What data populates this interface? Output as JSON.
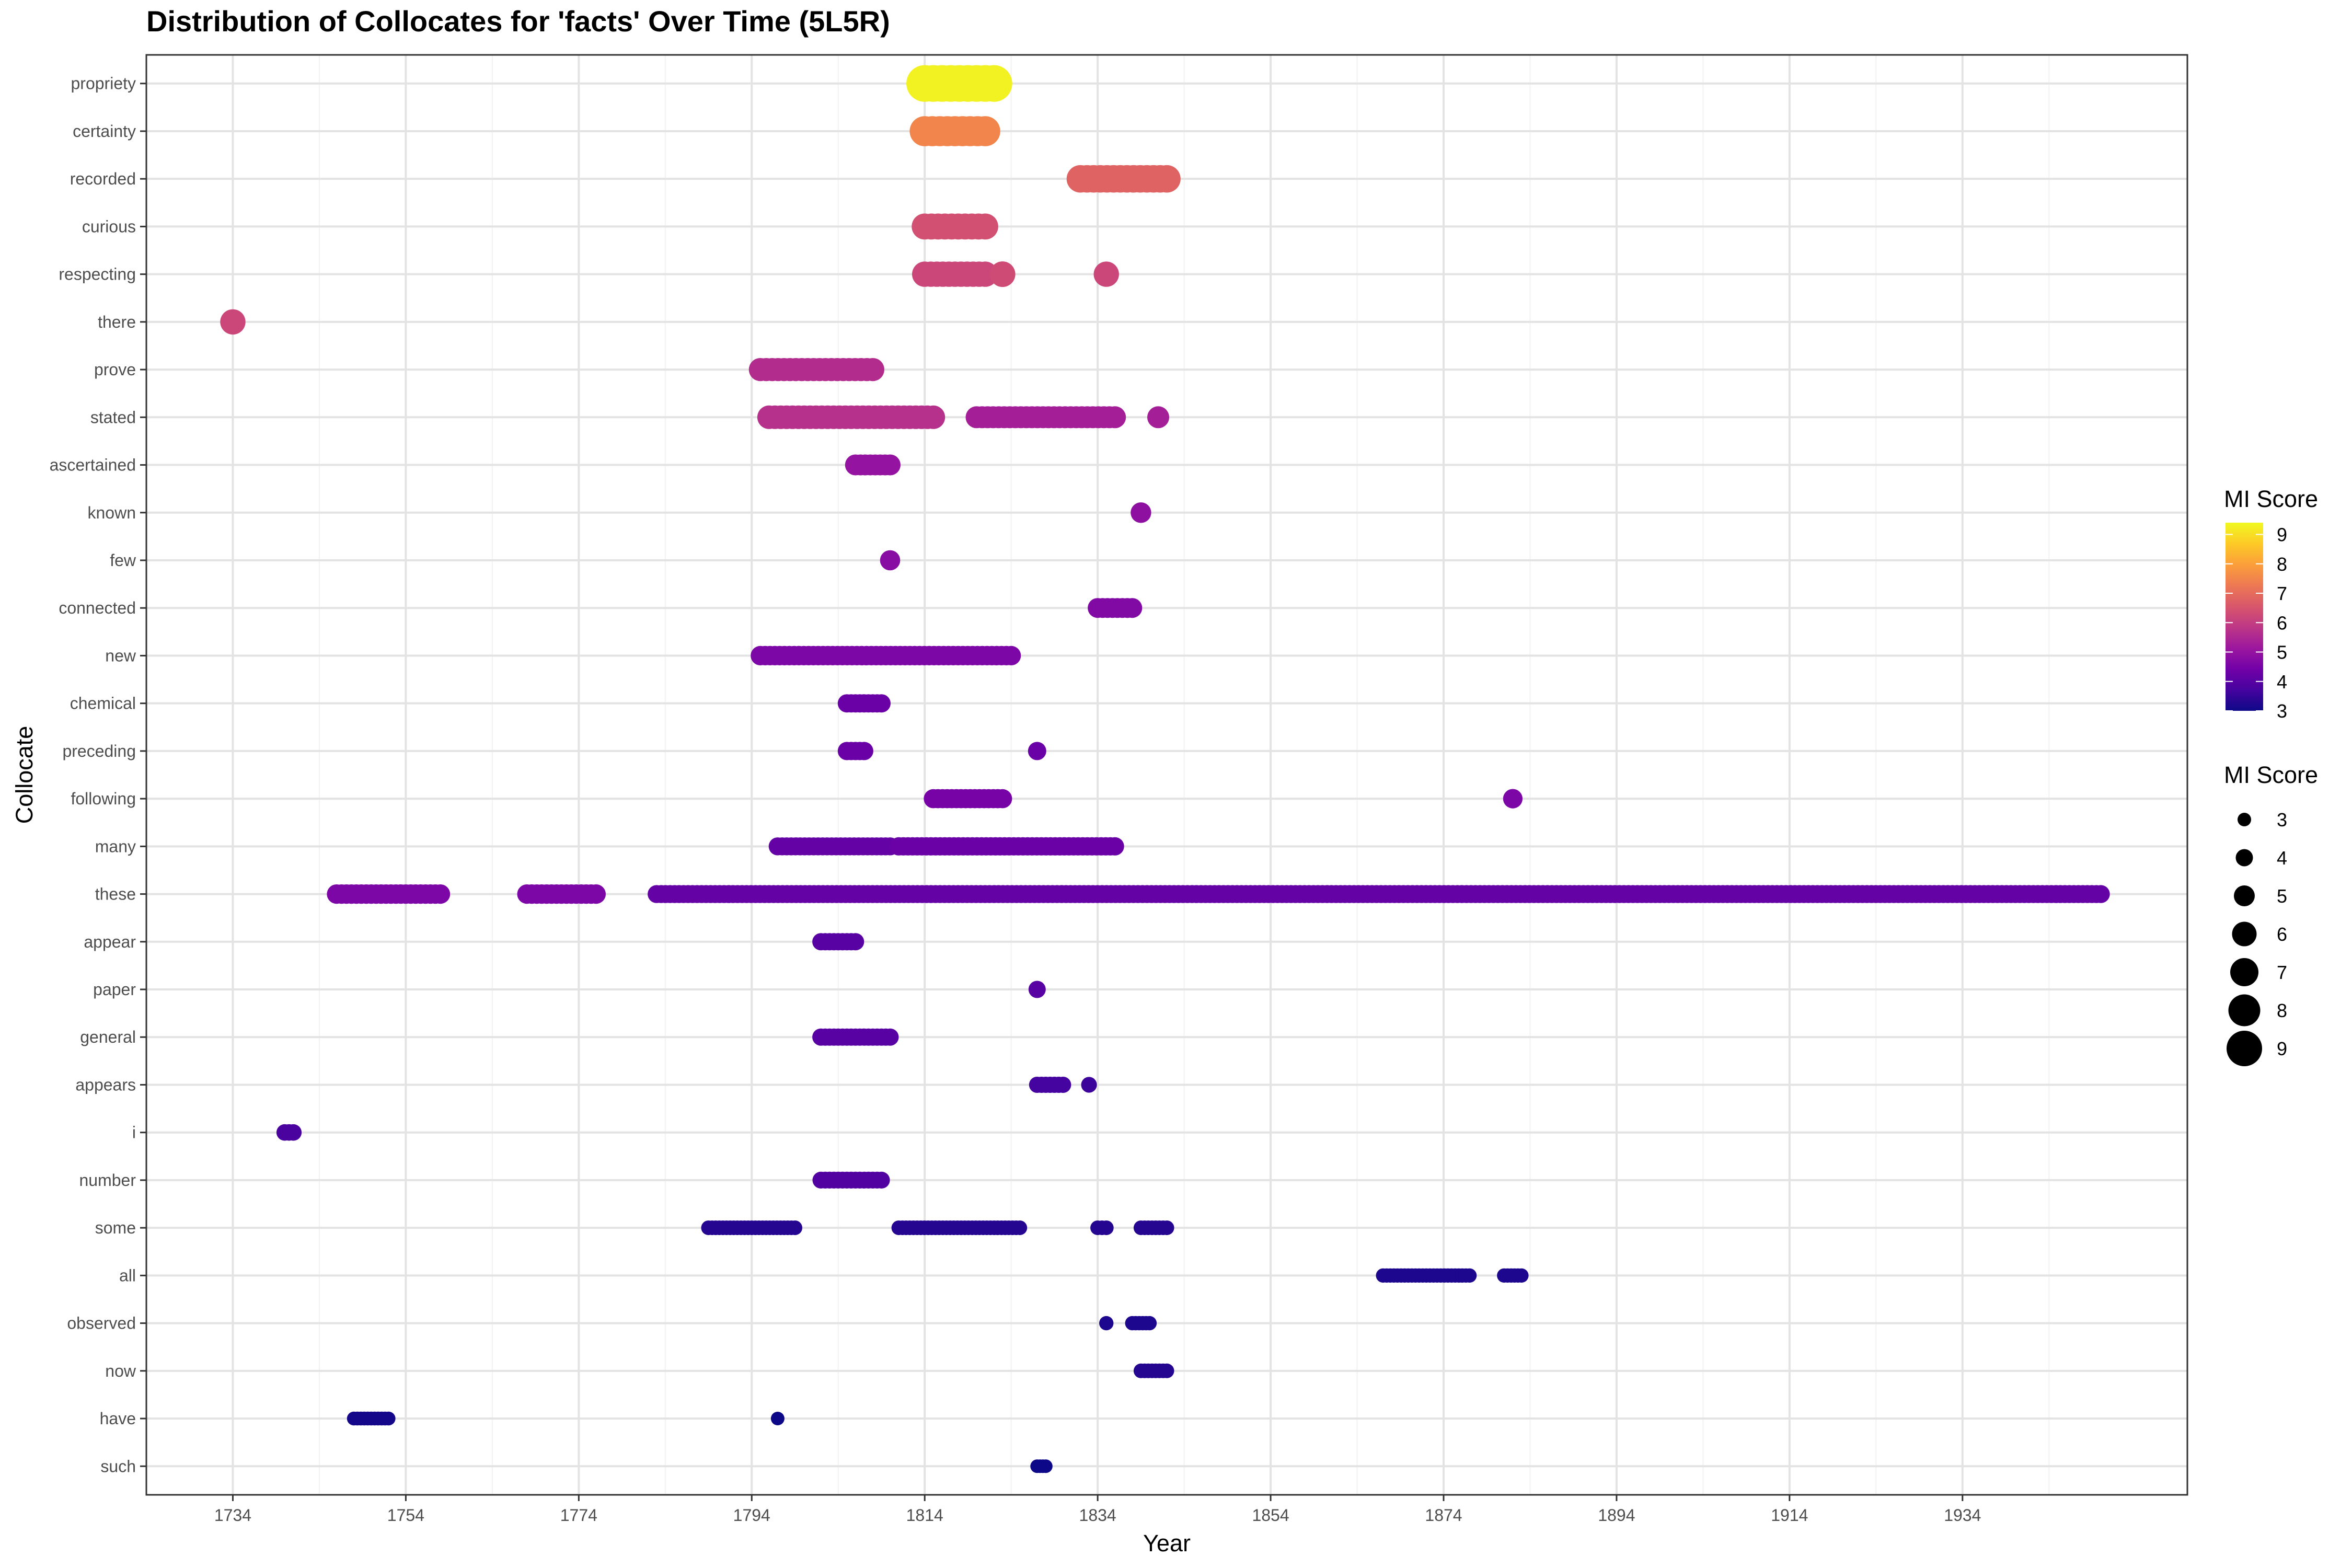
{
  "chart_data": {
    "type": "scatter",
    "title": "Distribution of Collocates for 'facts' Over Time (5L5R)",
    "xlabel": "Year",
    "ylabel": "Collocate",
    "xlim": [
      1724,
      1960
    ],
    "x_ticks": [
      1734,
      1754,
      1774,
      1794,
      1814,
      1834,
      1854,
      1874,
      1894,
      1914,
      1934
    ],
    "categories": [
      "propriety",
      "certainty",
      "recorded",
      "curious",
      "respecting",
      "there",
      "prove",
      "stated",
      "ascertained",
      "known",
      "few",
      "connected",
      "new",
      "chemical",
      "preceding",
      "following",
      "many",
      "these",
      "appear",
      "paper",
      "general",
      "appears",
      "i",
      "number",
      "some",
      "all",
      "observed",
      "now",
      "have",
      "such"
    ],
    "grid": true,
    "legend": {
      "color_title": "MI Score",
      "color_ticks": [
        3,
        4,
        5,
        6,
        7,
        8,
        9
      ],
      "color_range": [
        3,
        9.4
      ],
      "size_title": "MI Score",
      "size_values": [
        3,
        4,
        5,
        6,
        7,
        8,
        9
      ],
      "placement": "right"
    },
    "series": [
      {
        "collocate": "propriety",
        "segments": [
          [
            1814,
            1822,
            9.3
          ]
        ]
      },
      {
        "collocate": "certainty",
        "segments": [
          [
            1814,
            1821,
            7.5
          ]
        ]
      },
      {
        "collocate": "recorded",
        "segments": [
          [
            1832,
            1842,
            6.8
          ]
        ]
      },
      {
        "collocate": "curious",
        "segments": [
          [
            1814,
            1821,
            6.4
          ]
        ]
      },
      {
        "collocate": "respecting",
        "segments": [
          [
            1814,
            1821,
            6.2
          ],
          [
            1823,
            1823,
            6.3
          ],
          [
            1835,
            1835,
            6.2
          ]
        ]
      },
      {
        "collocate": "there",
        "segments": [
          [
            1734,
            1734,
            6.2
          ]
        ]
      },
      {
        "collocate": "prove",
        "segments": [
          [
            1795,
            1808,
            5.6
          ]
        ]
      },
      {
        "collocate": "stated",
        "segments": [
          [
            1796,
            1815,
            5.7
          ],
          [
            1820,
            1836,
            5.3
          ],
          [
            1841,
            1841,
            5.3
          ]
        ]
      },
      {
        "collocate": "ascertained",
        "segments": [
          [
            1806,
            1810,
            5.0
          ]
        ]
      },
      {
        "collocate": "known",
        "segments": [
          [
            1839,
            1839,
            4.9
          ]
        ]
      },
      {
        "collocate": "few",
        "segments": [
          [
            1810,
            1810,
            4.8
          ]
        ]
      },
      {
        "collocate": "connected",
        "segments": [
          [
            1834,
            1838,
            4.7
          ]
        ]
      },
      {
        "collocate": "new",
        "segments": [
          [
            1795,
            1824,
            4.6
          ]
        ]
      },
      {
        "collocate": "chemical",
        "segments": [
          [
            1805,
            1809,
            4.3
          ]
        ]
      },
      {
        "collocate": "preceding",
        "segments": [
          [
            1805,
            1807,
            4.3
          ],
          [
            1827,
            1827,
            4.3
          ]
        ]
      },
      {
        "collocate": "following",
        "segments": [
          [
            1815,
            1823,
            4.5
          ],
          [
            1882,
            1882,
            4.6
          ]
        ]
      },
      {
        "collocate": "many",
        "segments": [
          [
            1797,
            1810,
            4.2
          ],
          [
            1811,
            1836,
            4.3
          ]
        ]
      },
      {
        "collocate": "these",
        "segments": [
          [
            1746,
            1758,
            4.6
          ],
          [
            1768,
            1776,
            4.6
          ],
          [
            1783,
            1950,
            4.2
          ]
        ]
      },
      {
        "collocate": "appear",
        "segments": [
          [
            1802,
            1806,
            4.0
          ]
        ]
      },
      {
        "collocate": "paper",
        "segments": [
          [
            1827,
            1827,
            4.0
          ]
        ]
      },
      {
        "collocate": "general",
        "segments": [
          [
            1802,
            1810,
            4.0
          ]
        ]
      },
      {
        "collocate": "appears",
        "segments": [
          [
            1827,
            1830,
            3.7
          ],
          [
            1833,
            1833,
            3.6
          ]
        ]
      },
      {
        "collocate": "i",
        "segments": [
          [
            1740,
            1741,
            3.8
          ]
        ]
      },
      {
        "collocate": "number",
        "segments": [
          [
            1802,
            1809,
            3.9
          ]
        ]
      },
      {
        "collocate": "some",
        "segments": [
          [
            1789,
            1799,
            3.3
          ],
          [
            1811,
            1825,
            3.3
          ],
          [
            1834,
            1835,
            3.3
          ],
          [
            1839,
            1842,
            3.3
          ]
        ]
      },
      {
        "collocate": "all",
        "segments": [
          [
            1867,
            1877,
            3.2
          ],
          [
            1881,
            1883,
            3.2
          ]
        ]
      },
      {
        "collocate": "observed",
        "segments": [
          [
            1835,
            1835,
            3.2
          ],
          [
            1838,
            1840,
            3.2
          ]
        ]
      },
      {
        "collocate": "now",
        "segments": [
          [
            1839,
            1842,
            3.3
          ]
        ]
      },
      {
        "collocate": "have",
        "segments": [
          [
            1748,
            1752,
            3.1
          ],
          [
            1797,
            1797,
            3.0
          ]
        ]
      },
      {
        "collocate": "such",
        "segments": [
          [
            1827,
            1828,
            3.0
          ]
        ]
      }
    ]
  }
}
